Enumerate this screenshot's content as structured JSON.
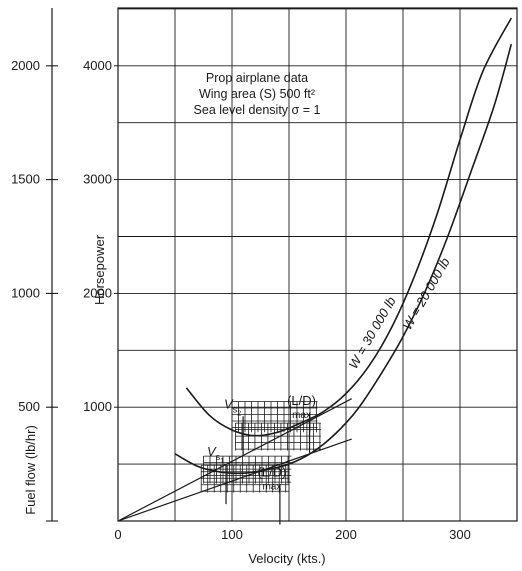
{
  "chart_data": {
    "type": "line",
    "title": "",
    "annotation_lines": [
      "Prop airplane data",
      "Wing area (S) 500 ft²",
      "Sea level density σ = 1"
    ],
    "xlabel": "Velocity (kts.)",
    "ylabel": "Horsepower",
    "ylabel_secondary": "Fuel flow (lb/hr)",
    "xlim": [
      0,
      350
    ],
    "ylim": [
      0,
      4600
    ],
    "ylim_secondary": [
      0,
      2300
    ],
    "x_ticks": [
      0,
      100,
      200,
      300
    ],
    "y_ticks": [
      1000,
      2000,
      3000,
      4000
    ],
    "y_secondary_ticks": [
      500,
      1000,
      1500,
      2000
    ],
    "grid": true,
    "series": [
      {
        "name": "W = 30000 lb",
        "label_text": "W = 30 000 lb",
        "x": [
          60,
          80,
          100,
          120,
          140,
          160,
          180,
          200,
          220,
          240,
          260,
          280,
          300,
          320,
          345
        ],
        "y": [
          1170,
          930,
          800,
          750,
          780,
          860,
          960,
          1120,
          1360,
          1700,
          2150,
          2700,
          3350,
          3950,
          4420
        ]
      },
      {
        "name": "W = 20000 lb",
        "label_text": "W = 20 000 lb",
        "x": [
          50,
          70,
          90,
          110,
          130,
          150,
          170,
          190,
          210,
          230,
          250,
          270,
          290,
          310,
          330,
          345
        ],
        "y": [
          590,
          480,
          430,
          420,
          450,
          500,
          600,
          760,
          980,
          1280,
          1620,
          2030,
          2520,
          3080,
          3650,
          4190
        ]
      },
      {
        "name": "tangent_30000",
        "x": [
          0,
          205
        ],
        "y": [
          0,
          1075
        ]
      },
      {
        "name": "tangent_20000",
        "x": [
          0,
          205
        ],
        "y": [
          0,
          720
        ]
      }
    ],
    "hatched_regions": [
      {
        "x": [
          100,
          175
        ],
        "y": [
          780,
          1050
        ]
      },
      {
        "x": [
          103,
          178
        ],
        "y": [
          620,
          860
        ]
      },
      {
        "x": [
          73,
          150
        ],
        "y": [
          250,
          490
        ]
      },
      {
        "x": [
          75,
          152
        ],
        "y": [
          330,
          570
        ]
      }
    ],
    "markers": [
      {
        "label": "V",
        "sub": "s",
        "subsub": "2",
        "x": 108,
        "y": 990
      },
      {
        "label": "(L/D)",
        "sub": "max",
        "x": 161,
        "y": 1020
      },
      {
        "label": "V",
        "sub": "s",
        "subsub": "1",
        "x": 93,
        "y": 570
      },
      {
        "label": "(L/D)",
        "sub": "max",
        "x": 135,
        "y": 390
      }
    ]
  }
}
